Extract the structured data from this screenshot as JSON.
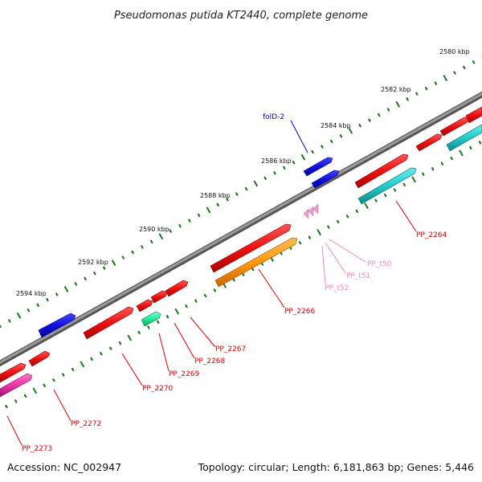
{
  "title": "Pseudomonas putida KT2440, complete genome",
  "footer": {
    "accession": "Accession: NC_002947",
    "details": "Topology: circular; Length: 6,181,863 bp; Genes: 5,446"
  },
  "scale_labels": [
    "2580 kbp",
    "2582 kbp",
    "2584 kbp",
    "2586 kbp",
    "2588 kbp",
    "2590 kbp",
    "2592 kbp",
    "2594 kbp"
  ],
  "colors": {
    "backbone": "#888888",
    "gene_red": "#ee1111",
    "gene_blue": "#1111dd",
    "gene_cyan": "#22cccc",
    "gene_orange": "#ff9911",
    "gene_green": "#22ee99",
    "gene_magenta": "#ee33aa",
    "trna_pink": "#ee99cc",
    "label_red": "#dd0000",
    "label_blue": "#0000cc",
    "label_pink": "#ee88bb",
    "tick_green": "#1a7a1a"
  },
  "labels": {
    "folD": "folD-2",
    "pp2264": "PP_2264",
    "pp2266": "PP_2266",
    "pp2267": "PP_2267",
    "pp2268": "PP_2268",
    "pp2269": "PP_2269",
    "pp2270": "PP_2270",
    "pp2272": "PP_2272",
    "pp2273": "PP_2273",
    "ppt50": "PP_t50",
    "ppt51": "PP_t51",
    "ppt52": "PP_t52"
  }
}
